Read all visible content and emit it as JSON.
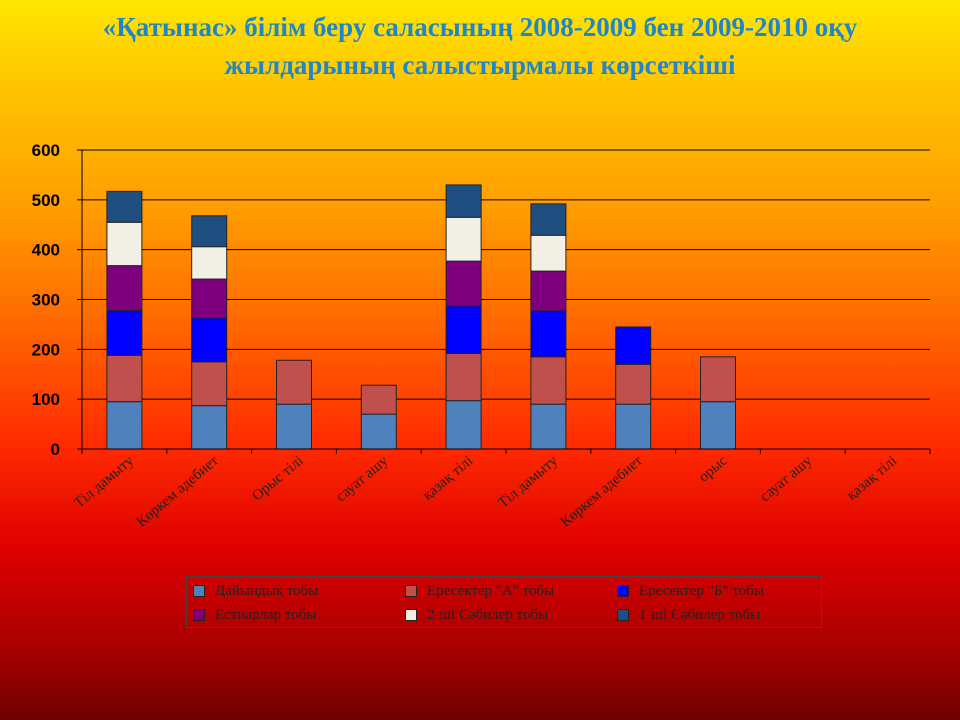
{
  "title_line1": "«Қатынас» білім беру саласының 2008-2009 бен 2009-2010  оқу",
  "title_line2": "жылдарының салыстырмалы көрсеткіші",
  "chart_data": {
    "type": "bar",
    "stacked": true,
    "title": "«Қатынас» білім беру саласының 2008-2009 бен 2009-2010  оқу жылдарының салыстырмалы көрсеткіші",
    "categories": [
      "Тіл дамыту",
      "Көркем әдебиет",
      "Орыс тілі",
      "сауат ашу",
      "қазақ тілі",
      "Тіл дамыту",
      "Көркем әдебиет",
      "орыс",
      "сауат ашу",
      "қазақ тілі"
    ],
    "ylim": [
      0,
      600
    ],
    "yticks": [
      0,
      100,
      200,
      300,
      400,
      500,
      600
    ],
    "grid": true,
    "legend_position": "bottom",
    "series": [
      {
        "name": "Дайындық тобы",
        "color": "#4f81bd",
        "values": [
          95,
          87,
          90,
          70,
          97,
          90,
          90,
          95,
          0,
          0
        ]
      },
      {
        "name": "Ересектер \"А\" тобы",
        "color": "#c0504d",
        "values": [
          93,
          88,
          88,
          58,
          95,
          95,
          80,
          90,
          0,
          0
        ]
      },
      {
        "name": "Ересектер \"Б\" тобы",
        "color": "#0000ff",
        "values": [
          90,
          88,
          0,
          0,
          95,
          92,
          75,
          0,
          0,
          0
        ]
      },
      {
        "name": "Естиарлар тобы",
        "color": "#7f007f",
        "values": [
          90,
          78,
          0,
          0,
          90,
          80,
          0,
          0,
          0,
          0
        ]
      },
      {
        "name": "2-ші Сәбилер тобы",
        "color": "#f2efe4",
        "values": [
          87,
          65,
          0,
          0,
          88,
          72,
          0,
          0,
          0,
          0
        ]
      },
      {
        "name": "1-ші Сәбилер тобы",
        "color": "#1f4e80",
        "values": [
          62,
          62,
          0,
          0,
          65,
          63,
          0,
          0,
          0,
          0
        ]
      }
    ]
  }
}
